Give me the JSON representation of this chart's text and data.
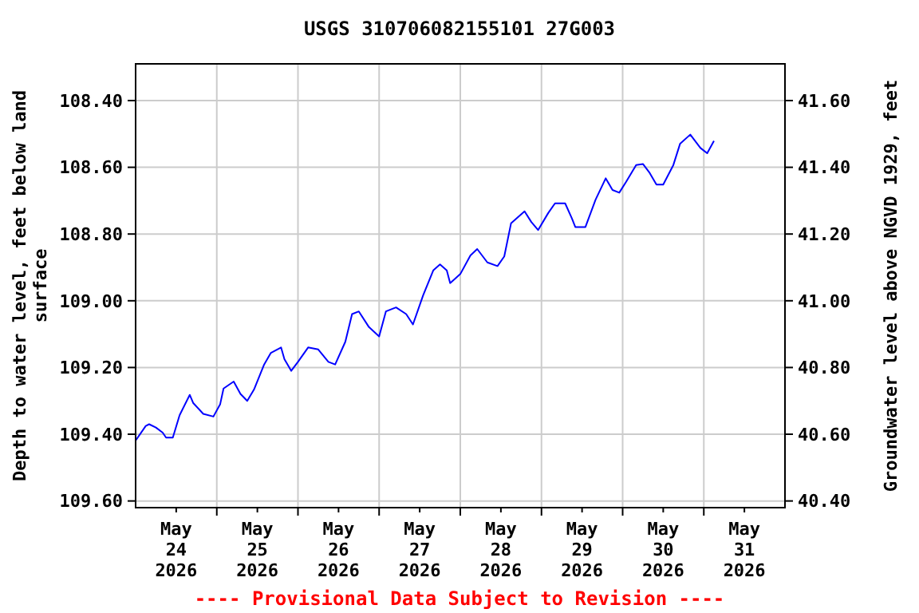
{
  "chart_data": {
    "type": "line",
    "title": "USGS 310706082155101 27G003",
    "ylabel": "Depth to water level, feet below land\nsurface",
    "y2label": "Groundwater level above NGVD 1929, feet",
    "annotations": [
      "---- Provisional Data Subject to Revision ----"
    ],
    "xlim": [
      "2026-05-24T00:00",
      "2026-06-01T00:00"
    ],
    "xticks": [
      {
        "value": "2026-05-24T12:00",
        "label": "May\n24\n2026"
      },
      {
        "value": "2026-05-25T00:00",
        "label": null
      },
      {
        "value": "2026-05-25T12:00",
        "label": "May\n25\n2026"
      },
      {
        "value": "2026-05-26T00:00",
        "label": null
      },
      {
        "value": "2026-05-26T12:00",
        "label": "May\n26\n2026"
      },
      {
        "value": "2026-05-27T00:00",
        "label": null
      },
      {
        "value": "2026-05-27T12:00",
        "label": "May\n27\n2026"
      },
      {
        "value": "2026-05-28T00:00",
        "label": null
      },
      {
        "value": "2026-05-28T12:00",
        "label": "May\n28\n2026"
      },
      {
        "value": "2026-05-29T00:00",
        "label": null
      },
      {
        "value": "2026-05-29T12:00",
        "label": "May\n29\n2026"
      },
      {
        "value": "2026-05-30T00:00",
        "label": null
      },
      {
        "value": "2026-05-30T12:00",
        "label": "May\n30\n2026"
      },
      {
        "value": "2026-05-31T00:00",
        "label": null
      },
      {
        "value": "2026-05-31T12:00",
        "label": "May\n31\n2026"
      }
    ],
    "ylim": [
      109.62,
      108.29
    ],
    "yticks": [
      {
        "value": 108.4,
        "label": "108.40"
      },
      {
        "value": 108.6,
        "label": "108.60"
      },
      {
        "value": 108.8,
        "label": "108.80"
      },
      {
        "value": 109.0,
        "label": "109.00"
      },
      {
        "value": 109.2,
        "label": "109.20"
      },
      {
        "value": 109.4,
        "label": "109.40"
      },
      {
        "value": 109.6,
        "label": "109.60"
      }
    ],
    "y2lim": [
      40.38,
      41.71
    ],
    "y2ticks": [
      {
        "value": 41.6,
        "label": "41.60"
      },
      {
        "value": 41.4,
        "label": "41.40"
      },
      {
        "value": 41.2,
        "label": "41.20"
      },
      {
        "value": 41.0,
        "label": "41.00"
      },
      {
        "value": 40.8,
        "label": "40.80"
      },
      {
        "value": 40.6,
        "label": "40.60"
      },
      {
        "value": 40.4,
        "label": "40.40"
      }
    ],
    "grid": true,
    "marker": "none",
    "line_style": "solid",
    "series": [
      {
        "color": "#0000ff",
        "x": [
          "2026-05-24T00:00",
          "2026-05-24T03:00",
          "2026-05-24T04:00",
          "2026-05-24T06:00",
          "2026-05-24T08:00",
          "2026-05-24T09:00",
          "2026-05-24T11:00",
          "2026-05-24T13:00",
          "2026-05-24T16:00",
          "2026-05-24T17:00",
          "2026-05-24T20:00",
          "2026-05-24T23:00",
          "2026-05-25T01:00",
          "2026-05-25T02:00",
          "2026-05-25T05:00",
          "2026-05-25T07:00",
          "2026-05-25T09:00",
          "2026-05-25T11:00",
          "2026-05-25T14:00",
          "2026-05-25T16:00",
          "2026-05-25T19:00",
          "2026-05-25T20:00",
          "2026-05-25T22:00",
          "2026-05-26T00:00",
          "2026-05-26T03:00",
          "2026-05-26T06:00",
          "2026-05-26T09:00",
          "2026-05-26T11:00",
          "2026-05-26T14:00",
          "2026-05-26T16:00",
          "2026-05-26T18:00",
          "2026-05-26T21:00",
          "2026-05-27T00:00",
          "2026-05-27T02:00",
          "2026-05-27T05:00",
          "2026-05-27T08:00",
          "2026-05-27T10:00",
          "2026-05-27T13:00",
          "2026-05-27T16:00",
          "2026-05-27T18:00",
          "2026-05-27T20:00",
          "2026-05-27T21:00",
          "2026-05-28T00:00",
          "2026-05-28T03:00",
          "2026-05-28T05:00",
          "2026-05-28T08:00",
          "2026-05-28T11:00",
          "2026-05-28T13:00",
          "2026-05-28T15:00",
          "2026-05-28T19:00",
          "2026-05-28T21:00",
          "2026-05-28T23:00",
          "2026-05-29T02:00",
          "2026-05-29T04:00",
          "2026-05-29T07:00",
          "2026-05-29T09:00",
          "2026-05-29T10:00",
          "2026-05-29T13:00",
          "2026-05-29T16:00",
          "2026-05-29T19:00",
          "2026-05-29T21:00",
          "2026-05-29T23:00",
          "2026-05-30T01:00",
          "2026-05-30T04:00",
          "2026-05-30T06:00",
          "2026-05-30T08:00",
          "2026-05-30T10:00",
          "2026-05-30T12:00",
          "2026-05-30T15:00",
          "2026-05-30T17:00",
          "2026-05-30T20:00",
          "2026-05-30T23:00",
          "2026-05-31T01:00",
          "2026-05-31T03:00"
        ],
        "values": [
          109.419,
          109.375,
          109.37,
          109.38,
          109.395,
          109.41,
          109.41,
          109.343,
          109.282,
          109.306,
          109.339,
          109.347,
          109.31,
          109.263,
          109.242,
          109.279,
          109.3,
          109.266,
          109.191,
          109.156,
          109.14,
          109.175,
          109.21,
          109.183,
          109.14,
          109.146,
          109.183,
          109.191,
          109.123,
          109.04,
          109.032,
          109.079,
          109.107,
          109.032,
          109.02,
          109.04,
          109.071,
          108.984,
          108.909,
          108.891,
          108.909,
          108.947,
          108.92,
          108.864,
          108.845,
          108.885,
          108.896,
          108.867,
          108.768,
          108.732,
          108.764,
          108.788,
          108.737,
          108.708,
          108.708,
          108.753,
          108.779,
          108.779,
          108.697,
          108.633,
          108.668,
          108.676,
          108.644,
          108.593,
          108.59,
          108.617,
          108.652,
          108.652,
          108.593,
          108.529,
          108.502,
          108.542,
          108.558,
          108.521
        ]
      }
    ]
  }
}
